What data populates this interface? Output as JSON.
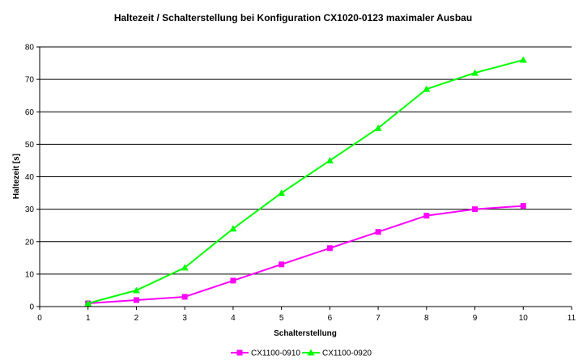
{
  "chart_data": {
    "type": "line",
    "title": "Haltezeit / Schalterstellung bei Konfiguration CX1020-0123 maximaler Ausbau",
    "xlabel": "Schalterstellung",
    "ylabel": "Haltezeit [s]",
    "xlim": [
      0,
      11
    ],
    "ylim": [
      0,
      80
    ],
    "xticks": [
      0,
      1,
      2,
      3,
      4,
      5,
      6,
      7,
      8,
      9,
      10,
      11
    ],
    "yticks": [
      0,
      10,
      20,
      30,
      40,
      50,
      60,
      70,
      80
    ],
    "grid": "horizontal",
    "legend": "bottom",
    "series": [
      {
        "name": "CX1100-0910",
        "color": "#ff00ff",
        "marker": "square",
        "x": [
          1,
          2,
          3,
          4,
          5,
          6,
          7,
          8,
          9,
          10
        ],
        "y": [
          1,
          2,
          3,
          8,
          13,
          18,
          23,
          28,
          30,
          31
        ]
      },
      {
        "name": "CX1100-0920",
        "color": "#00ff00",
        "marker": "triangle",
        "x": [
          1,
          2,
          3,
          4,
          5,
          6,
          7,
          8,
          9,
          10
        ],
        "y": [
          1,
          5,
          12,
          24,
          35,
          45,
          55,
          67,
          72,
          76
        ]
      }
    ]
  }
}
